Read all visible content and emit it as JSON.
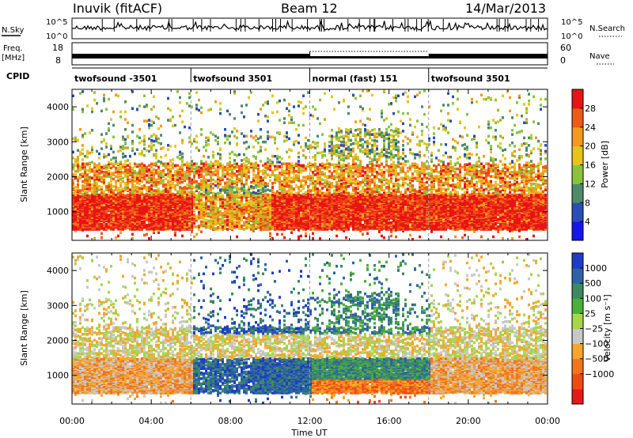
{
  "header": {
    "station": "Inuvik (fitACF)",
    "beam": "Beam 12",
    "date": "14/Mar/2013"
  },
  "summary_panel": {
    "nsky_label": "N.Sky",
    "nsky_ticks": [
      "10^5",
      "10^0"
    ],
    "nsearch_label": "N.Search",
    "freq_label_line1": "Freq.",
    "freq_label_line2": "[MHz]",
    "freq_ticks": [
      "18",
      "8"
    ],
    "nave_ticks": [
      "60",
      "0"
    ],
    "nave_label": "Nave",
    "cpid_label": "CPID"
  },
  "cpid_segments": [
    {
      "label": "twofsound -3501",
      "start_hour": 0,
      "end_hour": 6
    },
    {
      "label": "twofsound 3501",
      "start_hour": 6,
      "end_hour": 12
    },
    {
      "label": "normal (fast) 151",
      "start_hour": 12,
      "end_hour": 18
    },
    {
      "label": "twofsound 3501",
      "start_hour": 18,
      "end_hour": 24
    }
  ],
  "colors": {
    "power_scale": [
      "#1515ee",
      "#2a4db8",
      "#4f8a6a",
      "#8bc33c",
      "#e6c41a",
      "#f29a1e",
      "#ef5a16",
      "#e81414"
    ],
    "velocity_scale": [
      "#e61a1a",
      "#ef4a14",
      "#f2741c",
      "#f5a62a",
      "#c8c8c8",
      "#a6d64a",
      "#4caf3c",
      "#3c8a62",
      "#2f62a8",
      "#1e3cc8"
    ]
  },
  "chart_data": [
    {
      "type": "heatmap",
      "title": "Power",
      "xlabel": "Time UT",
      "ylabel": "Slant Range [km]",
      "x_ticks": [
        "00:00",
        "04:00",
        "08:00",
        "12:00",
        "16:00",
        "20:00",
        "00:00"
      ],
      "xlim_hours": [
        0,
        24
      ],
      "y_ticks": [
        1000,
        2000,
        3000,
        4000
      ],
      "ylim": [
        180,
        4500
      ],
      "colorbar_label": "Power [dB]",
      "colorbar_ticks": [
        4,
        8,
        12,
        16,
        20,
        24,
        28
      ],
      "clim": [
        0,
        32
      ]
    },
    {
      "type": "heatmap",
      "title": "Velocity",
      "xlabel": "Time UT",
      "ylabel": "Slant Range [km]",
      "x_ticks": [
        "00:00",
        "04:00",
        "08:00",
        "12:00",
        "16:00",
        "20:00",
        "00:00"
      ],
      "xlim_hours": [
        0,
        24
      ],
      "y_ticks": [
        1000,
        2000,
        3000,
        4000
      ],
      "ylim": [
        180,
        4500
      ],
      "colorbar_label": "Velocity [m s⁻¹]",
      "colorbar_ticks": [
        "1000",
        "500",
        "100",
        "25",
        "−25",
        "−100",
        "−500",
        "−1000"
      ]
    }
  ]
}
